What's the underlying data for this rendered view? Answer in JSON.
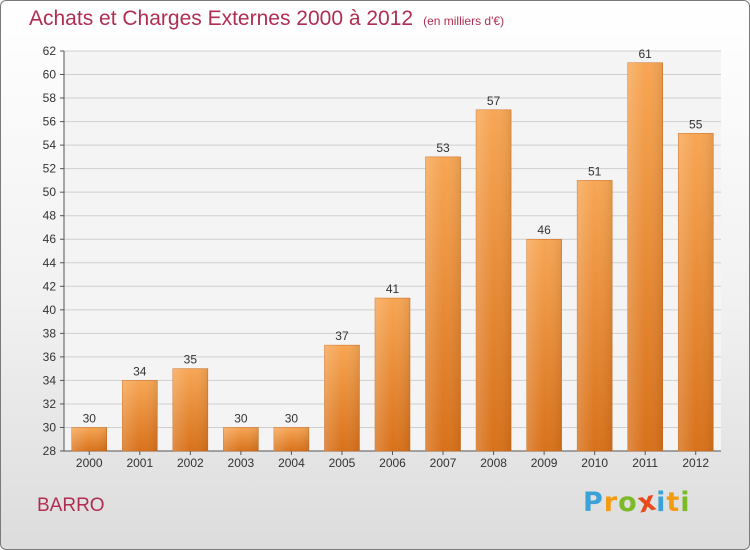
{
  "title": "Achats et Charges Externes 2000 à 2012",
  "subtitle": "(en milliers d'€)",
  "commune": "BARRO",
  "logo": {
    "letters": [
      "P",
      "r",
      "o",
      "x",
      "i",
      "t",
      "i"
    ],
    "colors": [
      "#3aa2d8",
      "#f39c12",
      "#7cba28",
      "#e84a1c",
      "#3aa2d8",
      "#f39c12",
      "#7cba28"
    ]
  },
  "chart_data": {
    "type": "bar",
    "categories": [
      "2000",
      "2001",
      "2002",
      "2003",
      "2004",
      "2005",
      "2006",
      "2007",
      "2008",
      "2009",
      "2010",
      "2011",
      "2012"
    ],
    "values": [
      30,
      34,
      35,
      30,
      30,
      37,
      41,
      53,
      57,
      46,
      51,
      61,
      55
    ],
    "title": "Achats et Charges Externes 2000 à 2012",
    "subtitle": "(en milliers d'€)",
    "ylim": [
      28,
      62
    ],
    "yticks": [
      28,
      30,
      32,
      34,
      36,
      38,
      40,
      42,
      44,
      46,
      48,
      50,
      52,
      54,
      56,
      58,
      60,
      62
    ],
    "grid": true,
    "bar_color": "#f0922e"
  }
}
